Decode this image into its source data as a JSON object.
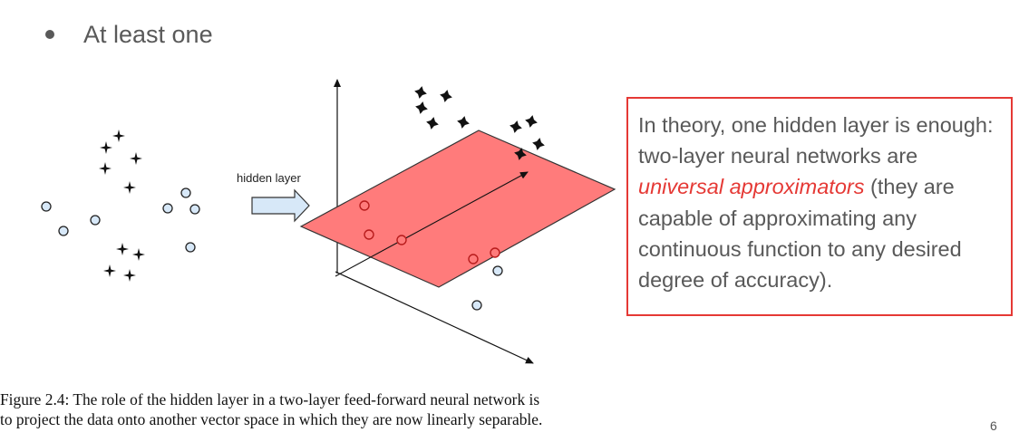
{
  "bullet": {
    "text": "At least one"
  },
  "diagram": {
    "arrow_label": "hidden layer"
  },
  "callout": {
    "before": "In theory, one hidden layer is enough: two-layer neural networks are ",
    "emphasis": "universal approximators",
    "after": " (they are capable of approximating any continuous function to any desired degree of accuracy)."
  },
  "caption": {
    "line1": "Figure 2.4: The role of the hidden layer in a two-layer feed-forward neural network is",
    "line2": "to project the data onto another vector space in which they are now linearly separable."
  },
  "page_number": "6",
  "colors": {
    "accent_red": "#e53935",
    "plane_fill": "#ff7b7b",
    "circle_fill": "#d7e8f8",
    "arrow_fill": "#d7e8f8",
    "body_text": "#595959"
  }
}
